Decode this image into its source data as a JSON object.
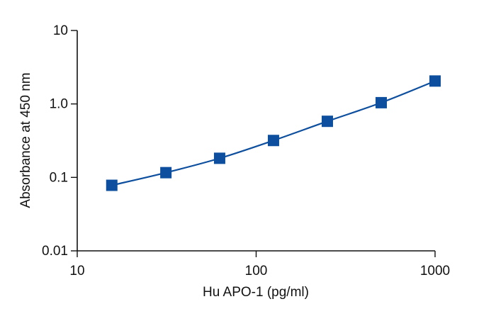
{
  "chart_data": {
    "type": "line",
    "xlabel": "Hu APO-1 (pg/ml)",
    "ylabel": "Absorbance at 450 nm",
    "xscale": "log",
    "yscale": "log",
    "xlim": [
      10,
      1000
    ],
    "ylim": [
      0.01,
      10
    ],
    "xticks": [
      {
        "value": 10,
        "label": "10"
      },
      {
        "value": 100,
        "label": "100"
      },
      {
        "value": 1000,
        "label": "1000"
      }
    ],
    "yticks": [
      {
        "value": 10,
        "label": "10"
      },
      {
        "value": 1,
        "label": "1.0"
      },
      {
        "value": 0.1,
        "label": "0.1"
      },
      {
        "value": 0.01,
        "label": "0.01"
      }
    ],
    "grid": false,
    "legend": "none",
    "marker": "square",
    "series": [
      {
        "color": "#0d4f9e",
        "x": [
          15.6,
          31.3,
          62.5,
          125,
          250,
          500,
          1000
        ],
        "y": [
          0.078,
          0.116,
          0.182,
          0.318,
          0.58,
          1.04,
          2.05
        ]
      }
    ]
  }
}
